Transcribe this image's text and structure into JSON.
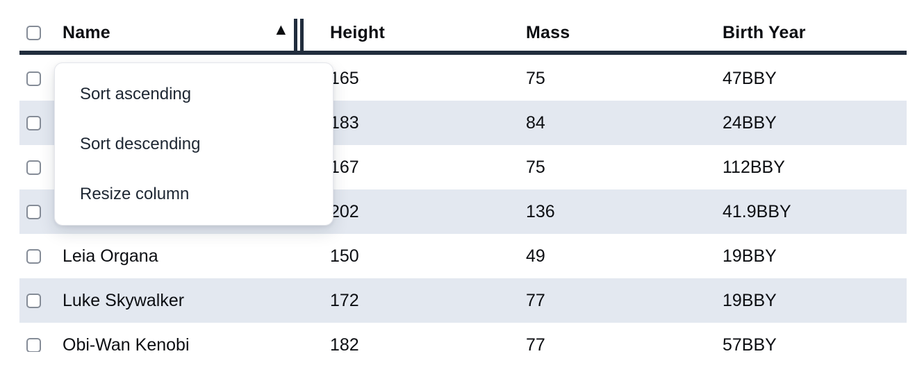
{
  "colors": {
    "header_border": "#212d3d",
    "row_stripe": "#e3e8f0",
    "checkbox_border": "#858c97",
    "menu_text": "#1e2733",
    "cell_text": "#0c0e12"
  },
  "icons": {
    "sort_ascending": "▲",
    "resize_handle": "double-vertical-bar",
    "checkbox": "empty-rounded-square"
  },
  "table": {
    "columns": [
      {
        "label": "Name",
        "sorted": "ascending"
      },
      {
        "label": "Height"
      },
      {
        "label": "Mass"
      },
      {
        "label": "Birth Year"
      }
    ],
    "rows": [
      {
        "name": "",
        "height": "165",
        "mass": "75",
        "birth_year": "47BBY"
      },
      {
        "name": "",
        "height": "183",
        "mass": "84",
        "birth_year": "24BBY"
      },
      {
        "name": "",
        "height": "167",
        "mass": "75",
        "birth_year": "112BBY"
      },
      {
        "name": "",
        "height": "202",
        "mass": "136",
        "birth_year": "41.9BBY"
      },
      {
        "name": "Leia Organa",
        "height": "150",
        "mass": "49",
        "birth_year": "19BBY"
      },
      {
        "name": "Luke Skywalker",
        "height": "172",
        "mass": "77",
        "birth_year": "19BBY"
      },
      {
        "name": "Obi-Wan Kenobi",
        "height": "182",
        "mass": "77",
        "birth_year": "57BBY"
      }
    ]
  },
  "context_menu": {
    "items": [
      {
        "label": "Sort ascending"
      },
      {
        "label": "Sort descending"
      },
      {
        "label": "Resize column"
      }
    ]
  }
}
